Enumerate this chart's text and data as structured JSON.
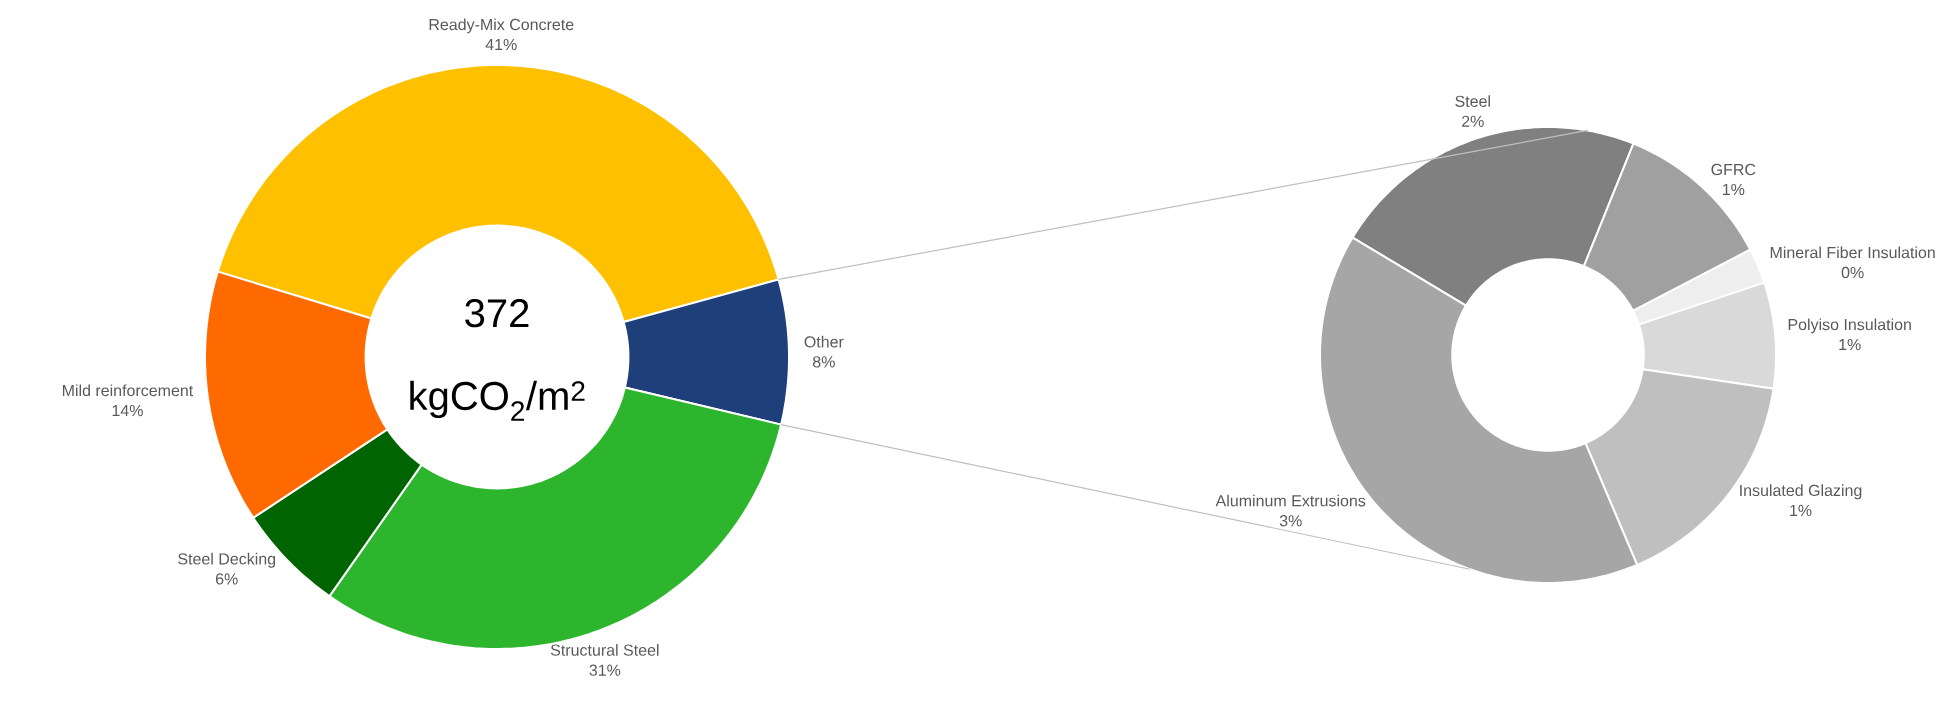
{
  "chart_data": [
    {
      "type": "donut",
      "categories": [
        "Ready-Mix Concrete",
        "Other",
        "Structural Steel",
        "Steel Decking",
        "Mild reinforcement"
      ],
      "values": [
        41,
        8,
        31,
        6,
        14
      ],
      "value_labels": [
        "41%",
        "8%",
        "31%",
        "6%",
        "14%"
      ],
      "colors": [
        "#ffc000",
        "#1f3f7a",
        "#2db52d",
        "#006400",
        "#ff6a00"
      ],
      "annotations": [
        "372",
        "kgCO$_{2}$/m$^{2}$"
      ]
    },
    {
      "type": "donut",
      "categories": [
        "Steel",
        "GFRC",
        "Mineral Fiber Insulation",
        "Polyiso Insulation",
        "Insulated Glazing",
        "Aluminum Extrusions"
      ],
      "values": [
        1.8,
        0.9,
        0.2,
        0.6,
        1.3,
        3.2
      ],
      "value_labels": [
        "2%",
        "1%",
        "0%",
        "1%",
        "1%",
        "3%"
      ],
      "colors": [
        "#808080",
        "#a0a0a0",
        "#eeeeee",
        "#d9d9d9",
        "#bfbfbf",
        "#a6a6a6"
      ]
    }
  ]
}
